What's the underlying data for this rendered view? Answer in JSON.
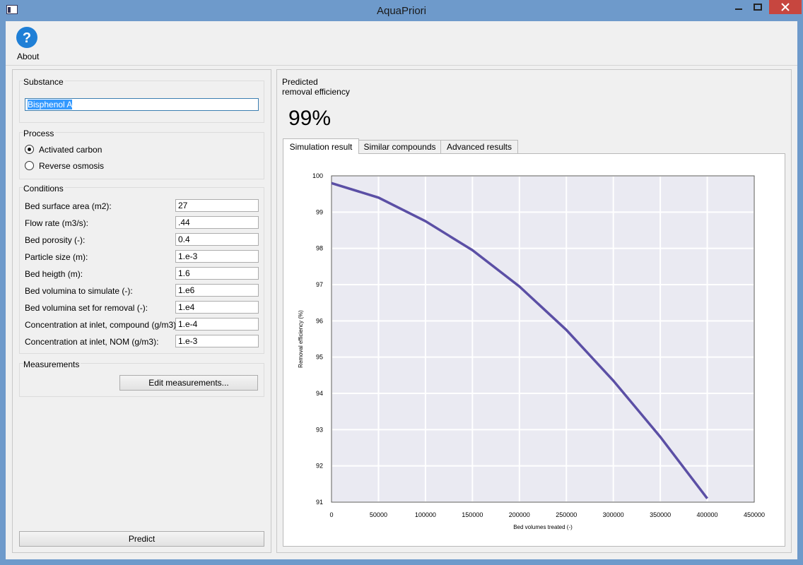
{
  "window": {
    "title": "AquaPriori"
  },
  "toolbar": {
    "about": "About"
  },
  "substance": {
    "label": "Substance",
    "value": "Bisphenol A"
  },
  "process": {
    "label": "Process",
    "options": [
      "Activated carbon",
      "Reverse osmosis"
    ],
    "selected": 0
  },
  "conditions": {
    "label": "Conditions",
    "fields": [
      {
        "label": "Bed surface area (m2):",
        "value": "27"
      },
      {
        "label": "Flow rate (m3/s):",
        "value": ".44"
      },
      {
        "label": "Bed porosity (-):",
        "value": "0.4"
      },
      {
        "label": "Particle size (m):",
        "value": "1.e-3"
      },
      {
        "label": "Bed heigth (m):",
        "value": "1.6"
      },
      {
        "label": "Bed volumina to simulate (-):",
        "value": "1.e6"
      },
      {
        "label": "Bed volumina set for removal (-):",
        "value": "1.e4"
      },
      {
        "label": "Concentration at inlet, compound (g/m3):",
        "value": "1.e-4"
      },
      {
        "label": "Concentration at inlet, NOM (g/m3):",
        "value": "1.e-3"
      }
    ]
  },
  "measurements": {
    "label": "Measurements",
    "button": "Edit measurements..."
  },
  "predict": "Predict",
  "result": {
    "label_lines": [
      "Predicted",
      "removal efficiency"
    ],
    "value": "99%"
  },
  "tabs": {
    "names": [
      "Simulation result",
      "Similar compounds",
      "Advanced results"
    ],
    "active": 0
  },
  "chart_data": {
    "type": "line",
    "x_label": "Bed volumes treated (-)",
    "y_label": "Removal efficiency (%)",
    "x": [
      0,
      50000,
      100000,
      150000,
      200000,
      250000,
      300000,
      350000,
      400000
    ],
    "series": [
      {
        "name": "Removal efficiency",
        "color": "#5b4fa5",
        "values": [
          99.8,
          99.4,
          98.75,
          97.95,
          96.95,
          95.75,
          94.35,
          92.8,
          91.1
        ]
      }
    ],
    "xlim": [
      0,
      450000
    ],
    "xticks": [
      0,
      50000,
      100000,
      150000,
      200000,
      250000,
      300000,
      350000,
      400000,
      450000
    ],
    "ylim": [
      91,
      100
    ],
    "yticks": [
      91,
      92,
      93,
      94,
      95,
      96,
      97,
      98,
      99,
      100
    ],
    "grid": true,
    "background": "#eaeaf2",
    "legend": false
  }
}
